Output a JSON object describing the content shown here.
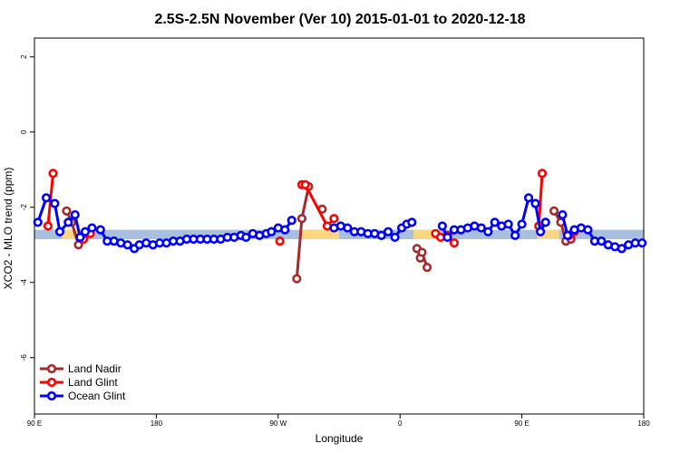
{
  "chart_data": {
    "type": "line",
    "title": "2.5S-2.5N November (Ver 10)   2015-01-01 to 2020-12-18",
    "xlabel": "Longitude",
    "ylabel": "XCO2 - MLO trend (ppm)",
    "xlim": [
      0,
      360
    ],
    "ylim": [
      -7.5,
      2.5
    ],
    "x_ticks": [
      {
        "value": 0,
        "label": "90 E"
      },
      {
        "value": 72,
        "label": "180"
      },
      {
        "value": 144,
        "label": "90 W"
      },
      {
        "value": 216,
        "label": "0"
      },
      {
        "value": 288,
        "label": "90 E"
      },
      {
        "value": 360,
        "label": "180"
      }
    ],
    "y_ticks": [
      {
        "value": 2,
        "label": "2"
      },
      {
        "value": 0,
        "label": "0"
      },
      {
        "value": -2,
        "label": "-2"
      },
      {
        "value": -4,
        "label": "-4"
      },
      {
        "value": -6,
        "label": "-6"
      }
    ],
    "bands": [
      {
        "name": "ocean-band",
        "color": "#a9bfdf",
        "y_range": [
          -2.85,
          -2.6
        ],
        "x_ranges": [
          [
            0,
            360
          ]
        ]
      },
      {
        "name": "land-band",
        "color": "#fcd77f",
        "y_range": [
          -2.85,
          -2.6
        ],
        "x_ranges": [
          [
            16,
            30
          ],
          [
            158,
            180
          ],
          [
            224,
            240
          ],
          [
            297,
            310
          ]
        ]
      }
    ],
    "series": [
      {
        "name": "Land Nadir",
        "color": "#a52a2a",
        "segments": [
          {
            "x": [
              19,
              22,
              26
            ],
            "y": [
              -2.1,
              -2.4,
              -3.0
            ]
          },
          {
            "x": [
              155,
              158,
              162
            ],
            "y": [
              -3.9,
              -2.3,
              -1.45
            ]
          },
          {
            "x": [
              170
            ],
            "y": [
              -2.05
            ]
          },
          {
            "x": [
              226,
              228,
              229,
              232
            ],
            "y": [
              -3.1,
              -3.35,
              -3.2,
              -3.6
            ]
          },
          {
            "x": [
              307,
              311,
              314,
              317
            ],
            "y": [
              -2.1,
              -2.4,
              -2.9,
              -2.85
            ]
          }
        ]
      },
      {
        "name": "Land Glint",
        "color": "#ff0000",
        "segments": [
          {
            "x": [
              8,
              11
            ],
            "y": [
              -2.5,
              -1.1
            ]
          },
          {
            "x": [
              29,
              33
            ],
            "y": [
              -2.85,
              -2.7
            ]
          },
          {
            "x": [
              145
            ],
            "y": [
              -2.9
            ]
          },
          {
            "x": [
              158,
              160,
              173,
              177
            ],
            "y": [
              -1.4,
              -1.4,
              -2.5,
              -2.3
            ]
          },
          {
            "x": [
              237,
              240,
              244,
              248
            ],
            "y": [
              -2.7,
              -2.8,
              -2.75,
              -2.95
            ]
          },
          {
            "x": [
              298,
              300
            ],
            "y": [
              -2.5,
              -1.1
            ]
          },
          {
            "x": [
              316,
              319
            ],
            "y": [
              -2.75,
              -2.65
            ]
          }
        ]
      },
      {
        "name": "Ocean Glint",
        "color": "#0000ff",
        "segments": [
          {
            "x": [
              2,
              7,
              12,
              15,
              20,
              24,
              27,
              30,
              34,
              39,
              43,
              47,
              51,
              55,
              59,
              62,
              66,
              70,
              74,
              78,
              82,
              86,
              90,
              94,
              98,
              102,
              106,
              110,
              114,
              118,
              122,
              125,
              129,
              133,
              137,
              140,
              144,
              148,
              152
            ],
            "y": [
              -2.4,
              -1.75,
              -1.9,
              -2.65,
              -2.4,
              -2.2,
              -2.8,
              -2.65,
              -2.55,
              -2.6,
              -2.9,
              -2.9,
              -2.95,
              -3.0,
              -3.1,
              -3.0,
              -2.95,
              -3.0,
              -2.95,
              -2.95,
              -2.9,
              -2.9,
              -2.85,
              -2.85,
              -2.85,
              -2.85,
              -2.85,
              -2.85,
              -2.8,
              -2.8,
              -2.75,
              -2.8,
              -2.7,
              -2.75,
              -2.7,
              -2.65,
              -2.55,
              -2.6,
              -2.35
            ]
          },
          {
            "x": [
              177,
              181,
              185,
              189,
              193,
              197,
              201,
              205,
              209,
              213,
              217,
              220,
              223
            ],
            "y": [
              -2.55,
              -2.5,
              -2.55,
              -2.65,
              -2.65,
              -2.7,
              -2.7,
              -2.75,
              -2.65,
              -2.8,
              -2.55,
              -2.45,
              -2.4
            ]
          },
          {
            "x": [
              241,
              244,
              248,
              252,
              256,
              260,
              264,
              268,
              272,
              276,
              280,
              284,
              288,
              292,
              296,
              299,
              302
            ],
            "y": [
              -2.5,
              -2.8,
              -2.6,
              -2.6,
              -2.55,
              -2.5,
              -2.55,
              -2.65,
              -2.4,
              -2.5,
              -2.45,
              -2.75,
              -2.45,
              -1.75,
              -1.9,
              -2.65,
              -2.4
            ]
          },
          {
            "x": [
              312,
              315,
              319,
              323,
              327,
              331,
              335,
              339,
              343,
              347,
              351,
              355,
              359
            ],
            "y": [
              -2.2,
              -2.75,
              -2.6,
              -2.55,
              -2.6,
              -2.9,
              -2.9,
              -3.0,
              -3.05,
              -3.1,
              -3.0,
              -2.95,
              -2.95
            ]
          }
        ]
      }
    ],
    "legend": {
      "position": "bottom-left",
      "entries": [
        "Land Nadir",
        "Land Glint",
        "Ocean Glint"
      ]
    }
  }
}
